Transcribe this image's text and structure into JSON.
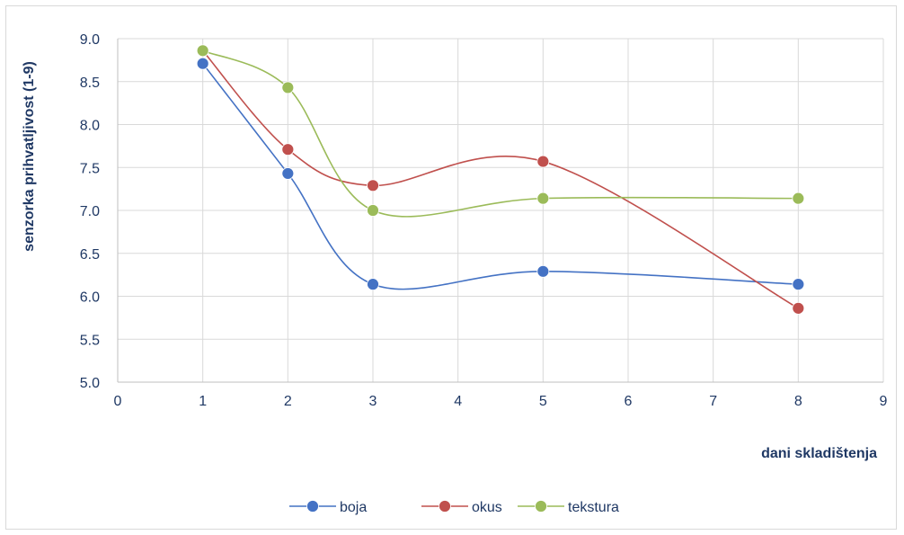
{
  "chart_data": {
    "type": "line",
    "title": "",
    "xlabel": "dani skladištenja",
    "ylabel": "senzorka prihvatljivost (1-9)",
    "xlim": [
      0,
      9
    ],
    "ylim": [
      5.0,
      9.0
    ],
    "x_ticks": [
      "0",
      "1",
      "2",
      "3",
      "4",
      "5",
      "6",
      "7",
      "8",
      "9"
    ],
    "y_ticks": [
      "5.0",
      "5.5",
      "6.0",
      "6.5",
      "7.0",
      "7.5",
      "8.0",
      "8.5",
      "9.0"
    ],
    "grid": true,
    "smooth": true,
    "legend_position": "bottom",
    "series": [
      {
        "name": "boja",
        "color": "#4472c4",
        "x": [
          1,
          2,
          3,
          5,
          8
        ],
        "y": [
          8.71,
          7.43,
          6.14,
          6.29,
          6.14
        ]
      },
      {
        "name": "okus",
        "color": "#c0504d",
        "x": [
          1,
          2,
          3,
          5,
          8
        ],
        "y": [
          8.86,
          7.71,
          7.29,
          7.57,
          5.86
        ]
      },
      {
        "name": "tekstura",
        "color": "#9bbb59",
        "x": [
          1,
          2,
          3,
          5,
          8
        ],
        "y": [
          8.86,
          8.43,
          7.0,
          7.14,
          7.14
        ]
      }
    ]
  }
}
